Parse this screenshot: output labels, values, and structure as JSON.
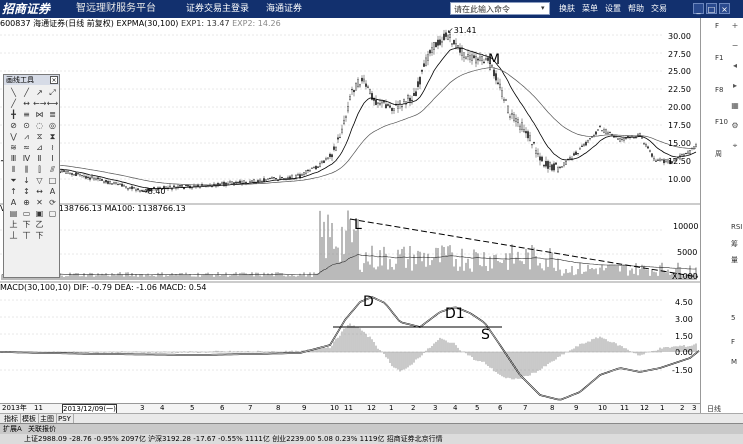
{
  "titlebar": {
    "logo": "招商证券",
    "slogan": "智远理财服务平台",
    "nav": [
      "证券交易主登录",
      "海通证券"
    ],
    "command_placeholder": "请在此输入命令",
    "menu": [
      "换肤",
      "菜单",
      "设置",
      "帮助",
      "交易"
    ],
    "window_buttons": [
      "_",
      "□",
      "×"
    ]
  },
  "info": {
    "stock_code": "600837",
    "stock_name": "海通证券(日线 前复权)",
    "indicator": "EXPMA(30,100)",
    "exp1_label": "EXP1: 13.47",
    "exp2_label": "EXP2: 14.26"
  },
  "volume_panel": {
    "label": "V 00 MA100: 1138766.13 MA100: 1138766.13",
    "current_value": "10748",
    "axis_labels": [
      "10000",
      "5000",
      "X1000"
    ]
  },
  "macd_panel": {
    "label": "MACD(30,100,10) DIF: -0.79 DEA: -1.06 MACD: 0.54"
  },
  "toolbox": {
    "title": "画线工具",
    "close": "×",
    "tools": [
      "╲",
      "╱",
      "↗",
      "⤢",
      "╱",
      "↔",
      "←→",
      "⟷",
      "╋",
      "≡",
      "⋈",
      "≣",
      "⊘",
      "⊙",
      "◌",
      "◎",
      "⋁",
      "⩘",
      "⧖",
      "⧗",
      "≋",
      "≈",
      "⊿",
      "≀",
      "Ⅲ",
      "Ⅳ",
      "Ⅱ",
      "Ⅰ",
      "⦀",
      "⫼",
      "⫿",
      "⫻",
      "⏷",
      "↓",
      "▽",
      "□",
      "↑",
      "↕",
      "↔",
      "A",
      "A",
      "⊕",
      "✕",
      "⟳",
      "▤",
      "▭",
      "▣",
      "▢",
      "上",
      "下",
      "乙",
      "",
      "丄",
      "丅",
      "下",
      ""
    ]
  },
  "annotations": {
    "high": "31.41",
    "low": "8.40",
    "M": "M",
    "L": "L",
    "D": "D",
    "D1": "D1",
    "S": "S"
  },
  "price_axis": [
    "30.00",
    "27.50",
    "25.00",
    "22.50",
    "20.00",
    "17.50",
    "15.00",
    "12.50",
    "10.00"
  ],
  "macd_axis": [
    "4.50",
    "3.00",
    "1.50",
    "0.00",
    "-1.50"
  ],
  "right_strip": {
    "labels": [
      "F",
      "F1",
      "F8",
      "F10",
      "周",
      "RSI",
      "筹",
      "量",
      "5",
      "F",
      "M"
    ],
    "bottom_tabs": [
      "日线"
    ]
  },
  "time_axis": {
    "labels": [
      "2013年",
      "11",
      "2013/12/09(一)",
      "3",
      "4",
      "5",
      "6",
      "7",
      "8",
      "9",
      "10",
      "11",
      "12",
      "1",
      "2",
      "3",
      "4",
      "5",
      "6",
      "7",
      "8",
      "9",
      "10",
      "11",
      "12",
      "1",
      "2",
      "3"
    ]
  },
  "tabs": [
    "指标",
    "模板",
    "主图",
    "PSY"
  ],
  "tabs2": [
    "扩展A",
    "关联报价"
  ],
  "statusbar": {
    "sh": "上证2988.09",
    "sh_change": "-28.76",
    "sh_pct": "-0.95%",
    "sh_amount": "2097亿",
    "sz": "沪深3192.28",
    "sz_change": "-17.67",
    "sz_pct": "-0.55%",
    "sz_amount": "1111亿",
    "cy": "创业2239.00",
    "cy_change": "5.08",
    "cy_pct": "0.23%",
    "cy_amount": "1119亿",
    "broker": "招商证券北京行情"
  },
  "colors": {
    "title_bg": "#12306e",
    "candle": "#333333",
    "ema1": "#000000",
    "ema2": "#555555",
    "grid": "#c8c8c8"
  }
}
